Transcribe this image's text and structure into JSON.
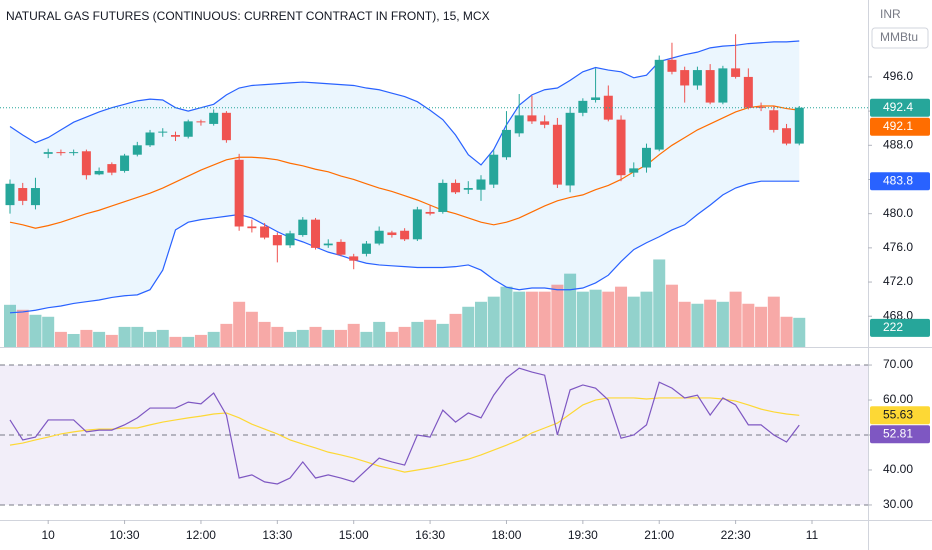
{
  "chart_data": [
    {
      "type": "candlestick",
      "title": "NATURAL GAS FUTURES (CONTINUOUS: CURRENT CONTRACT IN FRONT), 15, MCX",
      "currency": "INR",
      "unit": "MMBtu",
      "categories": [
        null,
        null,
        null,
        "10",
        null,
        null,
        null,
        null,
        null,
        "10:30",
        null,
        null,
        null,
        null,
        null,
        "12:00",
        null,
        null,
        null,
        null,
        null,
        "13:30",
        null,
        null,
        null,
        null,
        null,
        "15:00",
        null,
        null,
        null,
        null,
        null,
        "16:30",
        null,
        null,
        null,
        null,
        null,
        "18:00",
        null,
        null,
        null,
        null,
        null,
        "19:30",
        null,
        null,
        null,
        null,
        null,
        "21:00",
        null,
        null,
        null,
        null,
        null,
        "22:30",
        null,
        null,
        null,
        null,
        null,
        "11"
      ],
      "open": [
        481.0,
        483.0,
        481.0,
        487.0,
        487.2,
        487.1,
        487.3,
        484.6,
        485.8,
        485.0,
        486.9,
        488.0,
        489.5,
        489.2,
        489.0,
        490.8,
        490.5,
        491.8,
        486.3,
        478.5,
        478.5,
        477.5,
        476.3,
        477.5,
        479.3,
        476.3,
        476.7,
        475.0,
        475.3,
        476.5,
        477.8,
        478.0,
        477.0,
        480.2,
        480.2,
        483.6,
        482.8,
        482.8,
        483.4,
        486.6,
        489.4,
        491.5,
        490.8,
        490.4,
        483.3,
        491.8,
        493.3,
        493.8,
        491.0,
        484.8,
        485.4,
        487.5,
        498.0,
        496.8,
        495.0,
        496.8,
        493.0,
        497.0,
        496.0,
        492.5,
        492.1,
        490.0,
        488.2,
        null
      ],
      "high": [
        484.0,
        483.6,
        484.2,
        487.6,
        487.5,
        487.5,
        487.5,
        485.4,
        486.0,
        487.0,
        488.4,
        489.8,
        490.0,
        489.6,
        491.0,
        491.0,
        492.2,
        492.0,
        487.0,
        479.3,
        478.9,
        477.8,
        478.0,
        479.6,
        479.5,
        477.0,
        477.0,
        475.3,
        476.8,
        478.5,
        478.0,
        478.3,
        480.8,
        481.0,
        484.0,
        484.0,
        483.8,
        484.5,
        487.4,
        492.0,
        494.0,
        493.8,
        491.5,
        491.2,
        492.5,
        493.5,
        497.0,
        495.0,
        491.5,
        486.0,
        488.2,
        498.5,
        500.0,
        497.2,
        497.2,
        497.5,
        497.3,
        501.0,
        497.0,
        493.0,
        492.6,
        490.5,
        492.6,
        null
      ],
      "low": [
        480.0,
        481.0,
        480.5,
        486.5,
        486.8,
        486.8,
        484.0,
        484.5,
        484.5,
        484.8,
        486.7,
        487.8,
        489.0,
        488.5,
        488.8,
        490.3,
        490.3,
        488.3,
        478.0,
        477.8,
        477.0,
        474.3,
        476.0,
        477.3,
        475.8,
        476.0,
        475.0,
        473.5,
        475.0,
        476.3,
        477.2,
        476.8,
        476.8,
        479.8,
        480.0,
        482.3,
        482.3,
        481.5,
        483.0,
        486.3,
        489.0,
        490.5,
        490.0,
        483.0,
        482.5,
        491.4,
        493.0,
        490.8,
        483.8,
        484.3,
        484.8,
        487.3,
        496.3,
        493.0,
        494.5,
        492.8,
        492.8,
        495.8,
        492.2,
        492.0,
        489.5,
        488.0,
        488.0,
        null
      ],
      "close": [
        483.5,
        481.5,
        483.0,
        487.2,
        487.1,
        487.2,
        484.5,
        485.0,
        484.8,
        486.8,
        488.0,
        489.5,
        489.6,
        489.0,
        490.8,
        490.7,
        491.8,
        488.6,
        478.5,
        478.3,
        477.2,
        476.3,
        477.7,
        479.3,
        476.0,
        476.5,
        475.2,
        474.5,
        476.5,
        478.0,
        477.5,
        477.0,
        480.5,
        480.0,
        483.6,
        482.5,
        483.0,
        484.0,
        486.9,
        489.8,
        491.5,
        490.8,
        490.4,
        483.4,
        491.8,
        493.2,
        493.6,
        491.0,
        484.5,
        485.3,
        487.7,
        498.0,
        496.6,
        495.0,
        496.8,
        493.0,
        497.0,
        496.0,
        492.4,
        492.4,
        489.8,
        488.2,
        492.4,
        null
      ],
      "up_color": "#26a69a",
      "down_color": "#ef5350",
      "volume": [
        321,
        283,
        245,
        230,
        115,
        99,
        130,
        115,
        92,
        153,
        153,
        115,
        130,
        77,
        77,
        92,
        115,
        176,
        344,
        268,
        191,
        153,
        115,
        130,
        153,
        130,
        130,
        176,
        115,
        191,
        115,
        153,
        191,
        207,
        176,
        252,
        306,
        344,
        383,
        459,
        421,
        421,
        421,
        474,
        558,
        421,
        436,
        421,
        459,
        383,
        421,
        666,
        474,
        344,
        329,
        360,
        344,
        421,
        329,
        306,
        383,
        230,
        222,
        null
      ],
      "volume_up_color": "rgba(38,166,154,0.5)",
      "volume_down_color": "rgba(239,83,80,0.5)",
      "volume_ylim": [
        0,
        2640
      ],
      "bb_upper": [
        490.2,
        489.2,
        488.3,
        488.9,
        489.8,
        490.7,
        491.3,
        491.9,
        492.4,
        492.8,
        493.2,
        493.4,
        493.3,
        492.4,
        492.0,
        492.4,
        492.8,
        493.9,
        494.7,
        495.0,
        495.1,
        495.2,
        495.3,
        495.4,
        495.3,
        495.2,
        495.1,
        495.0,
        494.7,
        494.5,
        494.1,
        493.7,
        493.1,
        492.1,
        491.0,
        489.2,
        486.9,
        485.7,
        487.5,
        490.4,
        492.7,
        493.9,
        494.5,
        494.7,
        495.6,
        496.6,
        497.1,
        496.8,
        496.6,
        495.9,
        496.2,
        497.8,
        498.2,
        498.6,
        498.9,
        499.4,
        499.6,
        499.7,
        499.9,
        500.0,
        500.1,
        500.1,
        500.2,
        null
      ],
      "bb_basis": [
        479.0,
        478.7,
        478.3,
        478.6,
        479.0,
        479.5,
        480.0,
        480.4,
        480.9,
        481.4,
        481.9,
        482.4,
        483.0,
        483.7,
        484.4,
        485.1,
        485.7,
        486.3,
        486.6,
        486.6,
        486.5,
        486.3,
        485.9,
        485.6,
        485.2,
        484.9,
        484.4,
        484.0,
        483.5,
        483.0,
        482.6,
        482.1,
        481.6,
        481.0,
        480.4,
        480.0,
        479.5,
        479.0,
        478.7,
        479.0,
        479.5,
        480.2,
        480.9,
        481.5,
        481.9,
        482.2,
        482.8,
        483.3,
        484.0,
        484.9,
        485.7,
        486.9,
        488.0,
        488.9,
        489.8,
        490.5,
        491.2,
        491.9,
        492.4,
        492.6,
        492.6,
        492.3,
        492.1,
        null
      ],
      "bb_lower": [
        468.4,
        468.5,
        468.7,
        469.0,
        469.2,
        469.5,
        469.7,
        469.9,
        470.2,
        470.4,
        470.5,
        471.1,
        473.4,
        478.1,
        479.0,
        479.3,
        479.5,
        479.7,
        479.9,
        479.5,
        478.7,
        477.9,
        477.2,
        476.7,
        476.1,
        475.5,
        475.1,
        474.6,
        474.2,
        474.0,
        473.9,
        473.8,
        473.7,
        473.7,
        473.7,
        473.8,
        474.0,
        473.4,
        472.3,
        471.4,
        471.1,
        471.3,
        471.3,
        471.1,
        471.1,
        471.3,
        471.9,
        472.8,
        474.4,
        475.8,
        476.6,
        477.3,
        478.1,
        478.7,
        479.9,
        481.0,
        482.2,
        483.0,
        483.5,
        483.8,
        483.8,
        483.8,
        483.8,
        null
      ],
      "band_color": "#2962ff",
      "basis_color": "#ff6d00",
      "band_fill": "rgba(33,150,243,0.09)",
      "ylim": [
        464.4,
        505.0
      ],
      "yticks": [
        {
          "value": 468,
          "label": "468.0"
        },
        {
          "value": 472,
          "label": "472.0"
        },
        {
          "value": 476,
          "label": "476.0"
        },
        {
          "value": 480,
          "label": "480.0"
        },
        {
          "value": 484,
          "label": "484.0"
        },
        {
          "value": 488,
          "label": "488.0"
        },
        {
          "value": 492,
          "label": "492.0"
        },
        {
          "value": 496,
          "label": "496.0"
        }
      ],
      "last_value_labels": [
        "close",
        "bb_basis",
        "bb_lower",
        "volume"
      ]
    },
    {
      "type": "line",
      "rsi": [
        54.3,
        48.6,
        49.4,
        54.3,
        54.3,
        54.3,
        50.9,
        51.4,
        51.4,
        52.9,
        54.9,
        57.7,
        57.7,
        57.7,
        59.4,
        58.9,
        62.0,
        55.7,
        37.7,
        38.6,
        36.6,
        36.0,
        37.7,
        42.3,
        37.7,
        38.6,
        37.7,
        36.6,
        40.0,
        43.4,
        42.3,
        41.4,
        50.0,
        49.4,
        57.1,
        53.7,
        56.3,
        54.9,
        61.4,
        66.3,
        69.1,
        68.0,
        67.1,
        50.0,
        62.9,
        64.3,
        63.4,
        60.0,
        49.1,
        50.0,
        52.9,
        65.1,
        63.4,
        60.6,
        61.4,
        55.7,
        60.6,
        58.6,
        52.9,
        52.9,
        50.0,
        48.0,
        52.81,
        null
      ],
      "rsi_ma": [
        47.1,
        47.7,
        48.6,
        49.4,
        50.3,
        50.9,
        51.4,
        51.7,
        51.7,
        52.0,
        52.0,
        52.9,
        53.7,
        54.3,
        54.9,
        55.4,
        56.0,
        56.3,
        54.9,
        53.1,
        51.7,
        50.3,
        48.6,
        47.4,
        46.3,
        45.1,
        44.3,
        43.4,
        42.3,
        41.1,
        40.3,
        39.4,
        40.0,
        40.6,
        41.4,
        42.3,
        43.1,
        44.3,
        45.7,
        47.1,
        48.6,
        50.6,
        52.0,
        53.4,
        56.0,
        58.6,
        60.0,
        60.6,
        60.6,
        60.6,
        60.3,
        60.6,
        60.6,
        60.6,
        60.6,
        60.6,
        60.3,
        59.7,
        58.6,
        57.4,
        56.6,
        56.0,
        55.63,
        null
      ],
      "rsi_color": "#7e57c2",
      "ma_color": "#fdd835",
      "band_fill": "rgba(126,87,194,0.1)",
      "ylim": [
        25.7,
        74.3
      ],
      "yticks": [
        {
          "value": 70,
          "label": "70.00"
        },
        {
          "value": 60,
          "label": "60.00"
        },
        {
          "value": 50,
          "label": "50.00"
        },
        {
          "value": 40,
          "label": "40.00"
        },
        {
          "value": 30,
          "label": "30.00"
        }
      ],
      "dashed_ticks": [
        0,
        2,
        4
      ],
      "last_value_labels": [
        "rsi_ma",
        "rsi"
      ]
    }
  ]
}
